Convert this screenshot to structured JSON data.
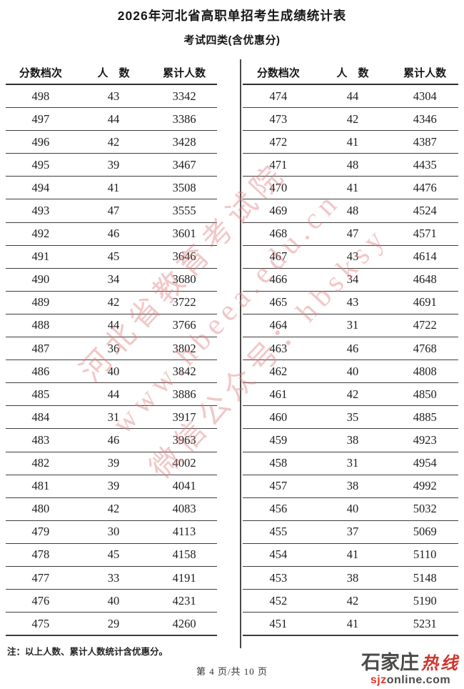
{
  "title": "2026年河北省高职单招考生成绩统计表",
  "subtitle": "考试四类(含优惠分)",
  "table_headers": [
    "分数档次",
    "人　数",
    "累计人数"
  ],
  "left_table": {
    "rows": [
      [
        498,
        43,
        3342
      ],
      [
        497,
        44,
        3386
      ],
      [
        496,
        42,
        3428
      ],
      [
        495,
        39,
        3467
      ],
      [
        494,
        41,
        3508
      ],
      [
        493,
        47,
        3555
      ],
      [
        492,
        46,
        3601
      ],
      [
        491,
        45,
        3646
      ],
      [
        490,
        34,
        3680
      ],
      [
        489,
        42,
        3722
      ],
      [
        488,
        44,
        3766
      ],
      [
        487,
        36,
        3802
      ],
      [
        486,
        40,
        3842
      ],
      [
        485,
        44,
        3886
      ],
      [
        484,
        31,
        3917
      ],
      [
        483,
        46,
        3963
      ],
      [
        482,
        39,
        4002
      ],
      [
        481,
        39,
        4041
      ],
      [
        480,
        42,
        4083
      ],
      [
        479,
        30,
        4113
      ],
      [
        478,
        45,
        4158
      ],
      [
        477,
        33,
        4191
      ],
      [
        476,
        40,
        4231
      ],
      [
        475,
        29,
        4260
      ]
    ]
  },
  "right_table": {
    "rows": [
      [
        474,
        44,
        4304
      ],
      [
        473,
        42,
        4346
      ],
      [
        472,
        41,
        4387
      ],
      [
        471,
        48,
        4435
      ],
      [
        470,
        41,
        4476
      ],
      [
        469,
        48,
        4524
      ],
      [
        468,
        47,
        4571
      ],
      [
        467,
        43,
        4614
      ],
      [
        466,
        34,
        4648
      ],
      [
        465,
        43,
        4691
      ],
      [
        464,
        31,
        4722
      ],
      [
        463,
        46,
        4768
      ],
      [
        462,
        40,
        4808
      ],
      [
        461,
        42,
        4850
      ],
      [
        460,
        35,
        4885
      ],
      [
        459,
        38,
        4923
      ],
      [
        458,
        31,
        4954
      ],
      [
        457,
        38,
        4992
      ],
      [
        456,
        40,
        5032
      ],
      [
        455,
        37,
        5069
      ],
      [
        454,
        41,
        5110
      ],
      [
        453,
        38,
        5148
      ],
      [
        452,
        42,
        5190
      ],
      [
        451,
        41,
        5231
      ]
    ]
  },
  "note": "注：以上人数、累计人数统计含优惠分。",
  "page_indicator": "第 4 页/共 10 页",
  "watermark": {
    "lines": [
      "河北省教育考试院",
      "www.hbeea.edu.cn",
      "微信公众号：hbsksy"
    ],
    "color": "#e07b7b"
  },
  "logo": {
    "zh_main": "石家庄",
    "zh_accent": "热线",
    "url_accent": "sjz",
    "url_rest": "online.com",
    "main_color": "#4a4a48",
    "accent_color": "#d0342c"
  }
}
